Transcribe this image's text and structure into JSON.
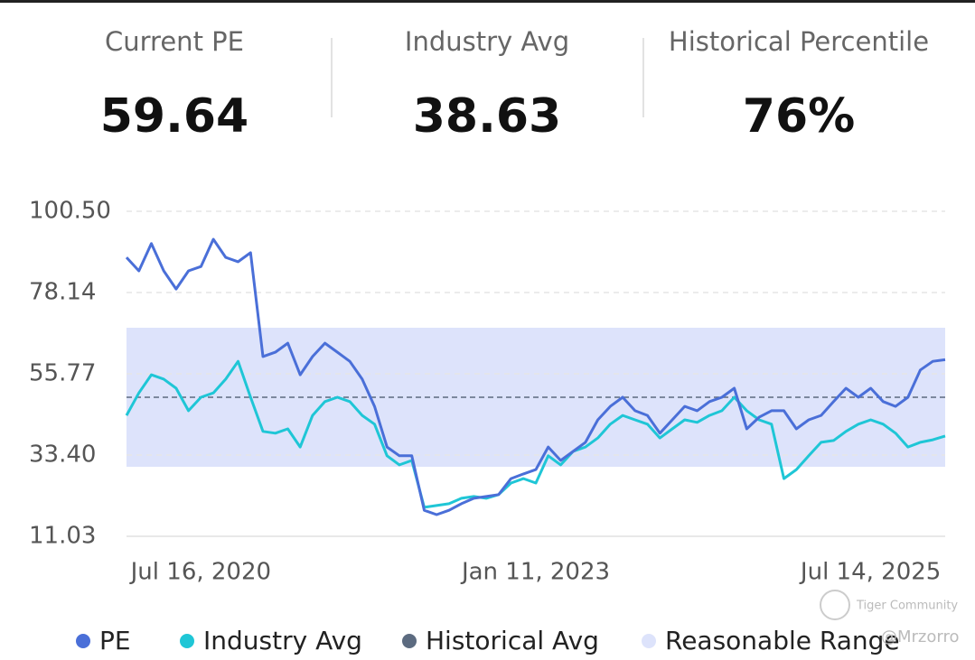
{
  "stats": [
    {
      "label": "Current PE",
      "value": "59.64"
    },
    {
      "label": "Industry Avg",
      "value": "38.63"
    },
    {
      "label": "Historical Percentile",
      "value": "76%",
      "color": "#d63a4f"
    }
  ],
  "watermark": [
    "Tiger Community",
    "@Mrzorro"
  ],
  "chart_data": {
    "type": "line",
    "categories": [
      null,
      null,
      null,
      null,
      null,
      null,
      "Jul 16, 2020",
      null,
      null,
      null,
      null,
      null,
      null,
      null,
      null,
      null,
      null,
      null,
      null,
      null,
      null,
      null,
      null,
      null,
      null,
      null,
      null,
      null,
      null,
      null,
      null,
      null,
      null,
      "Jan 11, 2023",
      null,
      null,
      null,
      null,
      null,
      null,
      null,
      null,
      null,
      null,
      null,
      null,
      null,
      null,
      null,
      null,
      null,
      null,
      null,
      null,
      null,
      null,
      null,
      null,
      null,
      null,
      "Jul 14, 2025",
      null,
      null,
      null,
      null,
      null,
      null
    ],
    "series": [
      {
        "name": "PE",
        "color": "#4a6fd8",
        "values": [
          87.8,
          84.1,
          91.6,
          84.1,
          79.1,
          84.1,
          85.3,
          92.8,
          87.8,
          86.6,
          89.1,
          60.5,
          61.7,
          64.2,
          55.5,
          60.5,
          64.2,
          61.7,
          59.2,
          54.3,
          46.8,
          35.6,
          33.2,
          33.2,
          18.2,
          17.0,
          18.2,
          20.0,
          21.5,
          22.0,
          22.5,
          26.9,
          28.2,
          29.4,
          35.6,
          31.9,
          34.4,
          36.9,
          43.1,
          46.8,
          49.3,
          45.6,
          44.3,
          39.4,
          43.1,
          46.8,
          45.6,
          48.1,
          49.3,
          51.8,
          40.6,
          43.8,
          45.6,
          45.6,
          40.6,
          43.1,
          44.3,
          48.1,
          51.8,
          49.3,
          51.8,
          48.1,
          46.8,
          49.3,
          56.8,
          59.2,
          59.64
        ]
      },
      {
        "name": "Industry Avg",
        "color": "#1fc6d6",
        "values": [
          44.3,
          50.5,
          55.5,
          54.3,
          51.8,
          45.6,
          49.3,
          50.5,
          54.3,
          59.2,
          49.3,
          39.9,
          39.4,
          40.6,
          35.6,
          44.3,
          48.1,
          49.3,
          48.1,
          44.3,
          41.9,
          33.2,
          30.7,
          31.9,
          19.0,
          19.5,
          20.0,
          21.5,
          22.0,
          21.5,
          22.5,
          25.7,
          26.9,
          25.7,
          33.2,
          30.7,
          34.4,
          35.6,
          38.1,
          41.9,
          44.3,
          43.1,
          41.9,
          38.1,
          40.6,
          43.1,
          42.4,
          44.3,
          45.6,
          49.3,
          45.6,
          43.1,
          41.9,
          26.9,
          29.4,
          33.2,
          36.9,
          37.4,
          39.9,
          41.9,
          43.1,
          41.9,
          39.4,
          35.6,
          36.9,
          37.6,
          38.63
        ]
      }
    ],
    "historical_avg": {
      "name": "Historical Avg",
      "color": "#5c6b80",
      "value": 49.3
    },
    "reasonable_range": {
      "name": "Reasonable Range",
      "color": "#dde3fb",
      "values": [
        30.17,
        68.44
      ]
    },
    "ylim": [
      11.03,
      100.5
    ],
    "yticks": [
      {
        "value": 11.03,
        "label": "11.03"
      },
      {
        "value": 33.4,
        "label": "33.40"
      },
      55.77,
      78.14,
      {
        "value": 100.5,
        "label": "100.50"
      }
    ],
    "grid": true
  }
}
